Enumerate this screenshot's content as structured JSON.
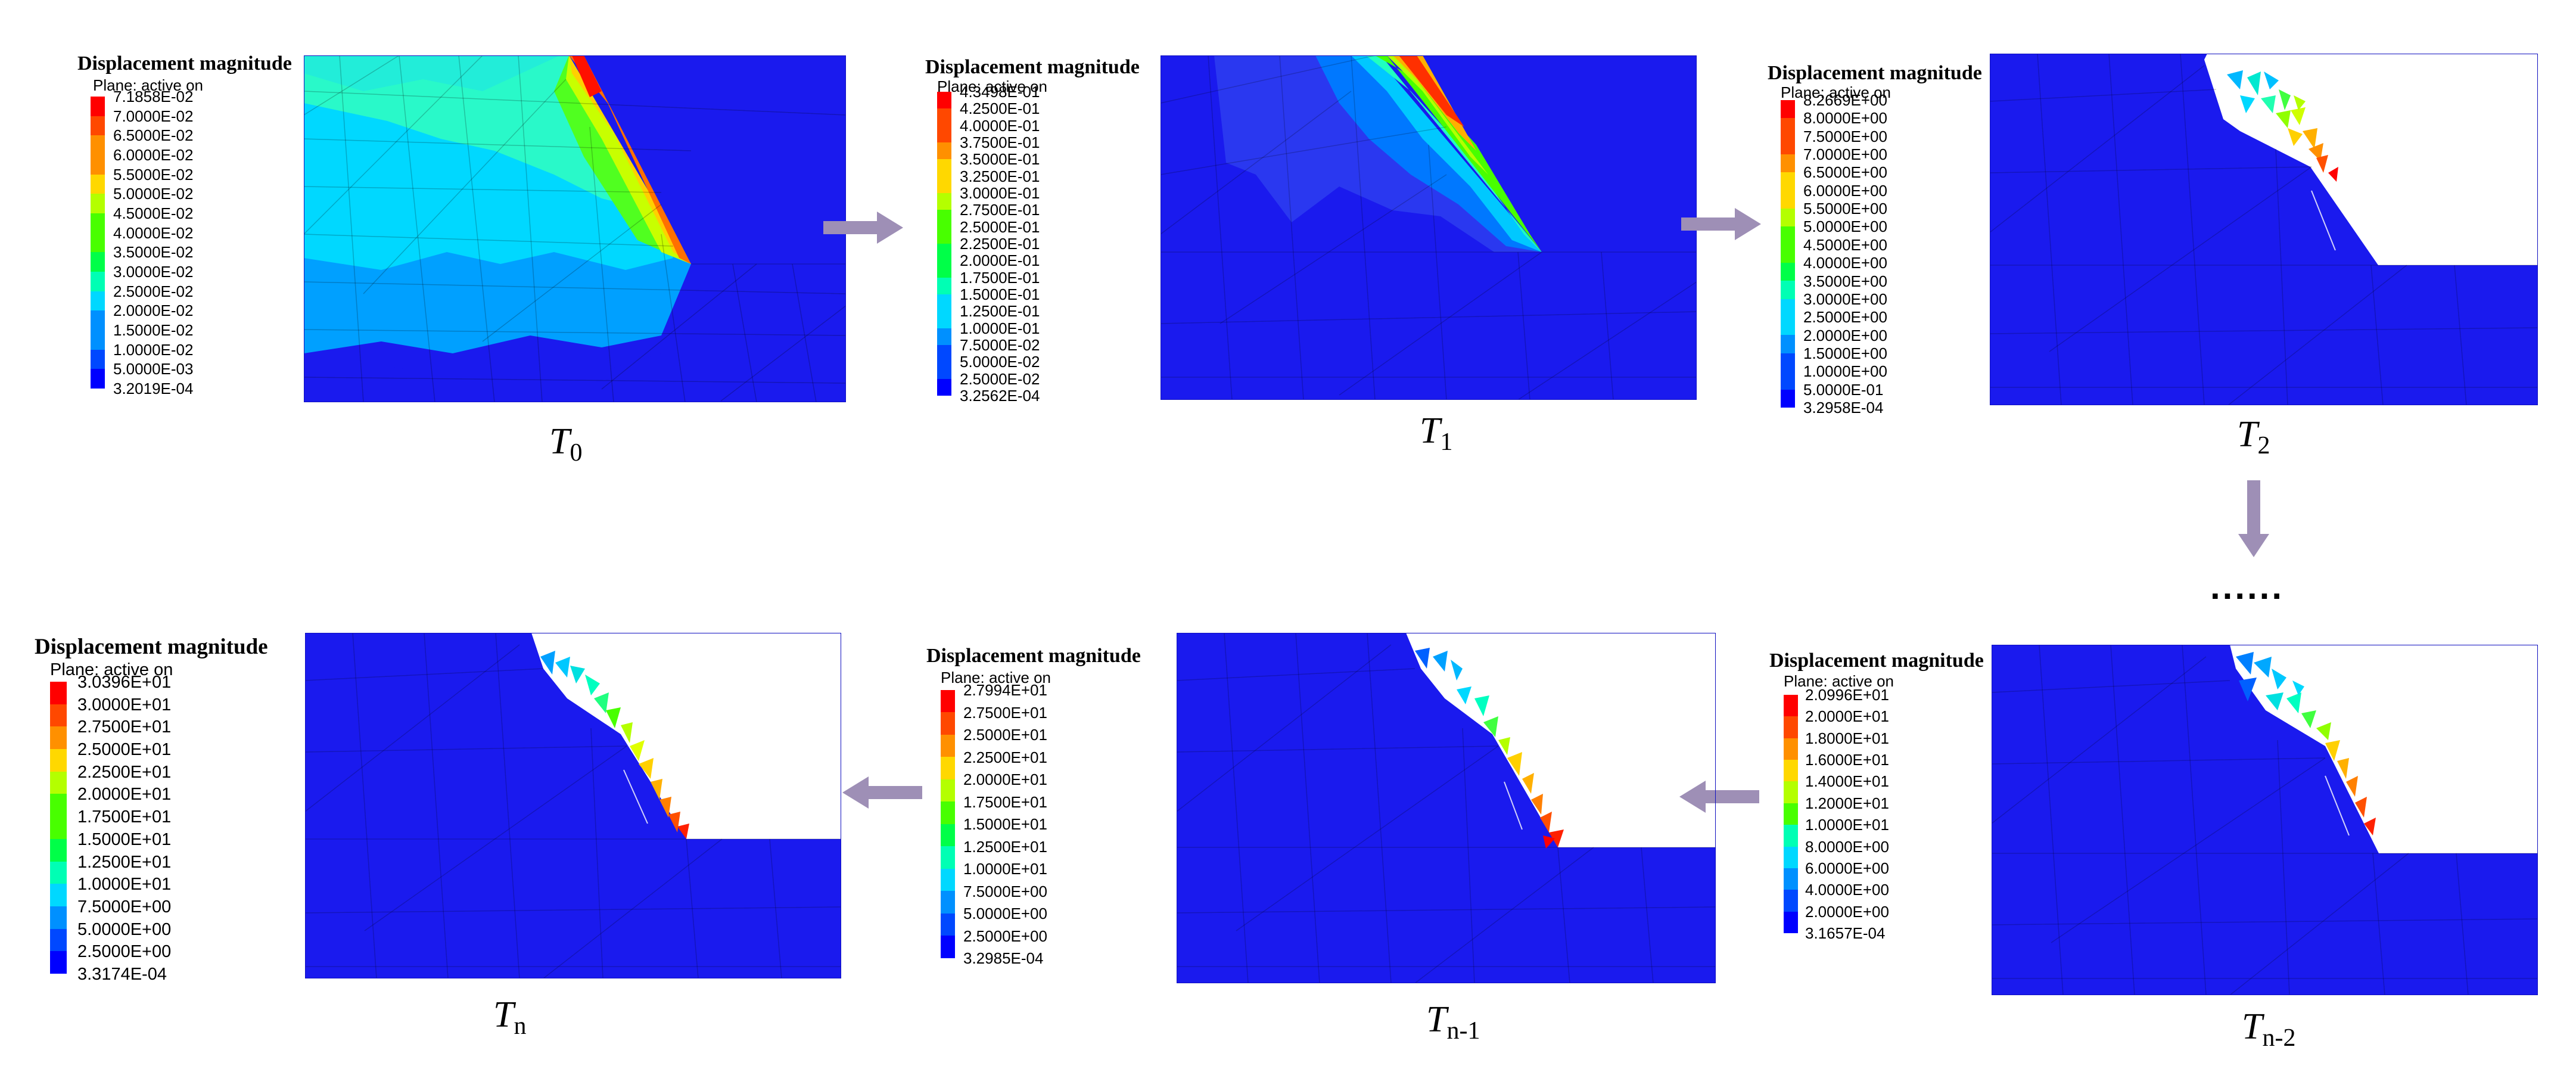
{
  "colors": {
    "scale": [
      "#0000ff",
      "#0048ff",
      "#0090ff",
      "#00d8ff",
      "#00ffb4",
      "#00ff48",
      "#48ff00",
      "#b4ff00",
      "#ffd800",
      "#ff9000",
      "#ff4800",
      "#ff0000"
    ],
    "mesh_background": "#1414f0",
    "arrow": "#9e8fb6"
  },
  "legend_title": "Displacement magnitude",
  "legend_plane": "Plane: active on",
  "panels": [
    {
      "id": "T0",
      "label_main": "T",
      "label_sub": "0",
      "ticks": [
        "7.1858E-02",
        "7.0000E-02",
        "6.5000E-02",
        "6.0000E-02",
        "5.5000E-02",
        "5.0000E-02",
        "4.5000E-02",
        "4.0000E-02",
        "3.5000E-02",
        "3.0000E-02",
        "2.5000E-02",
        "2.0000E-02",
        "1.5000E-02",
        "1.0000E-02",
        "5.0000E-03",
        "3.2019E-04"
      ]
    },
    {
      "id": "T1",
      "label_main": "T",
      "label_sub": "1",
      "ticks": [
        "4.3498E-01",
        "4.2500E-01",
        "4.0000E-01",
        "3.7500E-01",
        "3.5000E-01",
        "3.2500E-01",
        "3.0000E-01",
        "2.7500E-01",
        "2.5000E-01",
        "2.2500E-01",
        "2.0000E-01",
        "1.7500E-01",
        "1.5000E-01",
        "1.2500E-01",
        "1.0000E-01",
        "7.5000E-02",
        "5.0000E-02",
        "2.5000E-02",
        "3.2562E-04"
      ]
    },
    {
      "id": "T2",
      "label_main": "T",
      "label_sub": "2",
      "ticks": [
        "8.2669E+00",
        "8.0000E+00",
        "7.5000E+00",
        "7.0000E+00",
        "6.5000E+00",
        "6.0000E+00",
        "5.5000E+00",
        "5.0000E+00",
        "4.5000E+00",
        "4.0000E+00",
        "3.5000E+00",
        "3.0000E+00",
        "2.5000E+00",
        "2.0000E+00",
        "1.5000E+00",
        "1.0000E+00",
        "5.0000E-01",
        "3.2958E-04"
      ]
    },
    {
      "id": "Tn-2",
      "label_main": "T",
      "label_sub": "n-2",
      "ticks": [
        "2.0996E+01",
        "2.0000E+01",
        "1.8000E+01",
        "1.6000E+01",
        "1.4000E+01",
        "1.2000E+01",
        "1.0000E+01",
        "8.0000E+00",
        "6.0000E+00",
        "4.0000E+00",
        "2.0000E+00",
        "3.1657E-04"
      ]
    },
    {
      "id": "Tn-1",
      "label_main": "T",
      "label_sub": "n-1",
      "ticks": [
        "2.7994E+01",
        "2.7500E+01",
        "2.5000E+01",
        "2.2500E+01",
        "2.0000E+01",
        "1.7500E+01",
        "1.5000E+01",
        "1.2500E+01",
        "1.0000E+01",
        "7.5000E+00",
        "5.0000E+00",
        "2.5000E+00",
        "3.2985E-04"
      ]
    },
    {
      "id": "Tn",
      "label_main": "T",
      "label_sub": "n",
      "ticks": [
        "3.0396E+01",
        "3.0000E+01",
        "2.7500E+01",
        "2.5000E+01",
        "2.2500E+01",
        "2.0000E+01",
        "1.7500E+01",
        "1.5000E+01",
        "1.2500E+01",
        "1.0000E+01",
        "7.5000E+00",
        "5.0000E+00",
        "2.5000E+00",
        "3.3174E-04"
      ]
    }
  ],
  "ellipsis": "......"
}
